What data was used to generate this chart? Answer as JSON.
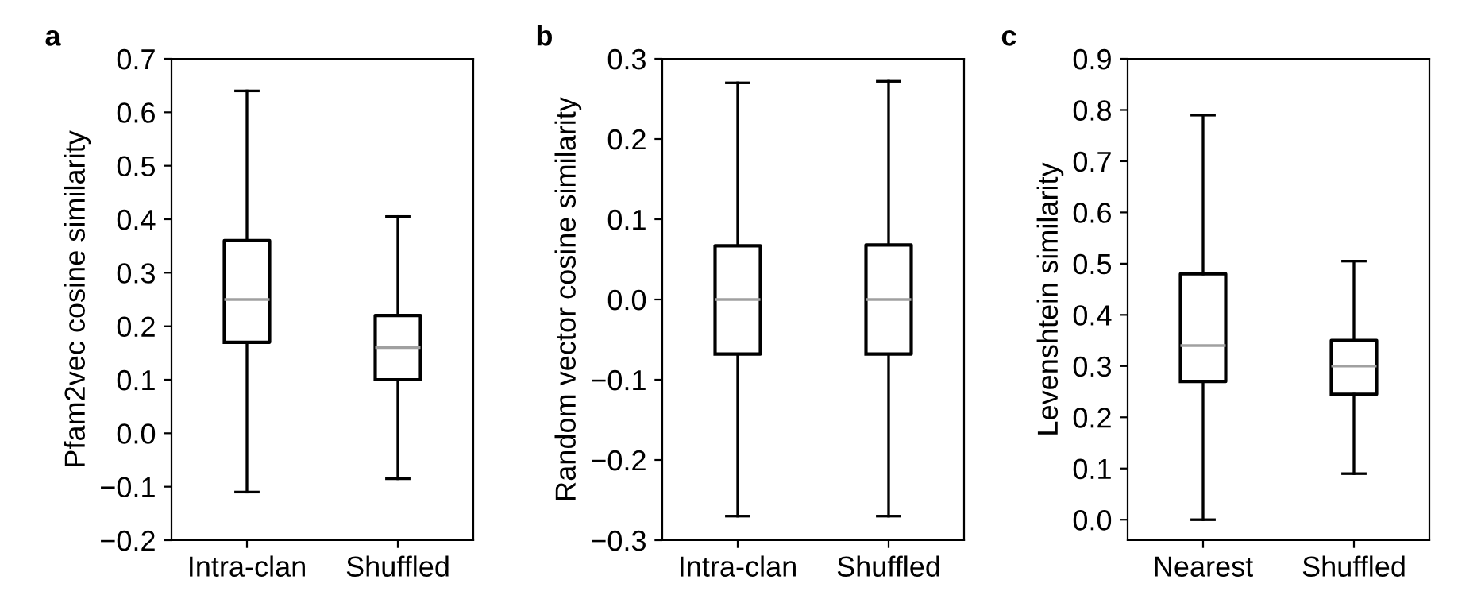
{
  "chart_data": [
    {
      "type": "box",
      "title": "a",
      "ylabel": "Pfam2vec cosine similarity",
      "categories": [
        "Intra-clan",
        "Shuffled"
      ],
      "boxes": [
        {
          "low": -0.11,
          "q1": 0.17,
          "median": 0.25,
          "q3": 0.36,
          "high": 0.64
        },
        {
          "low": -0.085,
          "q1": 0.1,
          "median": 0.16,
          "q3": 0.22,
          "high": 0.405
        }
      ],
      "color": "#000000",
      "ylim": [
        -0.2,
        0.7
      ],
      "yticks": [
        {
          "value": -0.2,
          "label": "−0.2"
        },
        {
          "value": -0.1,
          "label": "−0.1"
        },
        {
          "value": 0,
          "label": "0.0"
        },
        0.1,
        0.2,
        0.3,
        0.4,
        0.5,
        0.6,
        0.7
      ],
      "grid": false
    },
    {
      "type": "box",
      "title": "b",
      "ylabel": "Random vector cosine similarity",
      "categories": [
        "Intra-clan",
        "Shuffled"
      ],
      "boxes": [
        {
          "low": -0.27,
          "q1": -0.068,
          "median": 0.0,
          "q3": 0.067,
          "high": 0.27
        },
        {
          "low": -0.27,
          "q1": -0.068,
          "median": 0.0,
          "q3": 0.068,
          "high": 0.272
        }
      ],
      "color": "#000000",
      "ylim": [
        -0.3,
        0.3
      ],
      "yticks": [
        {
          "value": -0.3,
          "label": "−0.3"
        },
        {
          "value": -0.2,
          "label": "−0.2"
        },
        {
          "value": -0.1,
          "label": "−0.1"
        },
        {
          "value": 0,
          "label": "0.0"
        },
        0.1,
        0.2,
        0.3
      ],
      "grid": false
    },
    {
      "type": "box",
      "title": "c",
      "ylabel": "Levenshtein similarity",
      "categories": [
        "Nearest",
        "Shuffled"
      ],
      "boxes": [
        {
          "low": 0.0,
          "q1": 0.27,
          "median": 0.34,
          "q3": 0.48,
          "high": 0.79
        },
        {
          "low": 0.09,
          "q1": 0.245,
          "median": 0.3,
          "q3": 0.35,
          "high": 0.505
        }
      ],
      "color": "#000000",
      "ylim": [
        -0.04,
        0.9
      ],
      "yticks": [
        {
          "value": 0,
          "label": "0.0"
        },
        0.1,
        0.2,
        0.3,
        0.4,
        0.5,
        0.6,
        0.7,
        0.8,
        0.9
      ],
      "grid": false
    }
  ]
}
